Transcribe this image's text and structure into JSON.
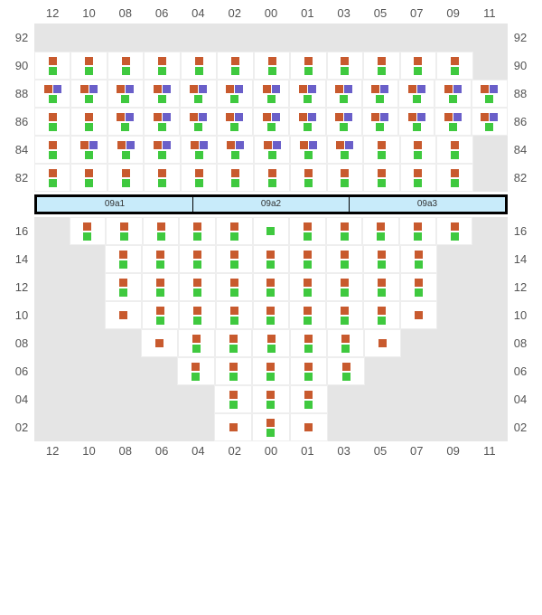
{
  "colors": {
    "orange": "#c85a2e",
    "green": "#3fc93f",
    "purple": "#6a5fc9",
    "cell_off": "#e5e5e5",
    "cell_on": "#ffffff",
    "grid_border": "#eeeeee",
    "mid_bg": "#c8ebfa",
    "mid_border": "#000000",
    "text": "#555555"
  },
  "marker_size": 9,
  "columns": [
    "12",
    "10",
    "08",
    "06",
    "04",
    "02",
    "00",
    "01",
    "03",
    "05",
    "07",
    "09",
    "11"
  ],
  "top": {
    "y_labels": [
      "92",
      "90",
      "88",
      "86",
      "84",
      "82"
    ],
    "rows": [
      {
        "y": "92",
        "cells": [
          null,
          null,
          null,
          null,
          null,
          null,
          null,
          null,
          null,
          null,
          null,
          null,
          null
        ]
      },
      {
        "y": "90",
        "cells": [
          [
            "o",
            "g"
          ],
          [
            "o",
            "g"
          ],
          [
            "o",
            "g"
          ],
          [
            "o",
            "g"
          ],
          [
            "o",
            "g"
          ],
          [
            "o",
            "g"
          ],
          [
            "o",
            "g"
          ],
          [
            "o",
            "g"
          ],
          [
            "o",
            "g"
          ],
          [
            "o",
            "g"
          ],
          [
            "o",
            "g"
          ],
          [
            "o",
            "g"
          ],
          null
        ]
      },
      {
        "y": "88",
        "cells": [
          [
            "o",
            "p",
            "g"
          ],
          [
            "o",
            "p",
            "g"
          ],
          [
            "o",
            "p",
            "g"
          ],
          [
            "o",
            "p",
            "g"
          ],
          [
            "o",
            "p",
            "g"
          ],
          [
            "o",
            "p",
            "g"
          ],
          [
            "o",
            "p",
            "g"
          ],
          [
            "o",
            "p",
            "g"
          ],
          [
            "o",
            "p",
            "g"
          ],
          [
            "o",
            "p",
            "g"
          ],
          [
            "o",
            "p",
            "g"
          ],
          [
            "o",
            "p",
            "g"
          ],
          [
            "o",
            "p",
            "g"
          ]
        ]
      },
      {
        "y": "86",
        "cells": [
          [
            "o",
            "g"
          ],
          [
            "o",
            "g"
          ],
          [
            "o",
            "p",
            "g"
          ],
          [
            "o",
            "p",
            "g"
          ],
          [
            "o",
            "p",
            "g"
          ],
          [
            "o",
            "p",
            "g"
          ],
          [
            "o",
            "p",
            "g"
          ],
          [
            "o",
            "p",
            "g"
          ],
          [
            "o",
            "p",
            "g"
          ],
          [
            "o",
            "p",
            "g"
          ],
          [
            "o",
            "p",
            "g"
          ],
          [
            "o",
            "p",
            "g"
          ],
          [
            "o",
            "p",
            "g"
          ]
        ]
      },
      {
        "y": "84",
        "cells": [
          [
            "o",
            "g"
          ],
          [
            "o",
            "p",
            "g"
          ],
          [
            "o",
            "p",
            "g"
          ],
          [
            "o",
            "p",
            "g"
          ],
          [
            "o",
            "p",
            "g"
          ],
          [
            "o",
            "p",
            "g"
          ],
          [
            "o",
            "p",
            "g"
          ],
          [
            "o",
            "p",
            "g"
          ],
          [
            "o",
            "p",
            "g"
          ],
          [
            "o",
            "g"
          ],
          [
            "o",
            "g"
          ],
          [
            "o",
            "g"
          ],
          null
        ]
      },
      {
        "y": "82",
        "cells": [
          [
            "o",
            "g"
          ],
          [
            "o",
            "g"
          ],
          [
            "o",
            "g"
          ],
          [
            "o",
            "g"
          ],
          [
            "o",
            "g"
          ],
          [
            "o",
            "g"
          ],
          [
            "o",
            "g"
          ],
          [
            "o",
            "g"
          ],
          [
            "o",
            "g"
          ],
          [
            "o",
            "g"
          ],
          [
            "o",
            "g"
          ],
          [
            "o",
            "g"
          ],
          null
        ]
      }
    ]
  },
  "mid_labels": [
    "09a1",
    "09a2",
    "09a3"
  ],
  "bottom": {
    "y_labels": [
      "16",
      "14",
      "12",
      "10",
      "08",
      "06",
      "04",
      "02"
    ],
    "rows": [
      {
        "y": "16",
        "cells": [
          null,
          [
            "o",
            "g"
          ],
          [
            "o",
            "g"
          ],
          [
            "o",
            "g"
          ],
          [
            "o",
            "g"
          ],
          [
            "o",
            "g"
          ],
          [
            "g"
          ],
          [
            "o",
            "g"
          ],
          [
            "o",
            "g"
          ],
          [
            "o",
            "g"
          ],
          [
            "o",
            "g"
          ],
          [
            "o",
            "g"
          ],
          null
        ]
      },
      {
        "y": "14",
        "cells": [
          null,
          null,
          [
            "o",
            "g"
          ],
          [
            "o",
            "g"
          ],
          [
            "o",
            "g"
          ],
          [
            "o",
            "g"
          ],
          [
            "o",
            "g"
          ],
          [
            "o",
            "g"
          ],
          [
            "o",
            "g"
          ],
          [
            "o",
            "g"
          ],
          [
            "o",
            "g"
          ],
          null,
          null
        ]
      },
      {
        "y": "12",
        "cells": [
          null,
          null,
          [
            "o",
            "g"
          ],
          [
            "o",
            "g"
          ],
          [
            "o",
            "g"
          ],
          [
            "o",
            "g"
          ],
          [
            "o",
            "g"
          ],
          [
            "o",
            "g"
          ],
          [
            "o",
            "g"
          ],
          [
            "o",
            "g"
          ],
          [
            "o",
            "g"
          ],
          null,
          null
        ]
      },
      {
        "y": "10",
        "cells": [
          null,
          null,
          [
            "o"
          ],
          [
            "o",
            "g"
          ],
          [
            "o",
            "g"
          ],
          [
            "o",
            "g"
          ],
          [
            "o",
            "g"
          ],
          [
            "o",
            "g"
          ],
          [
            "o",
            "g"
          ],
          [
            "o",
            "g"
          ],
          [
            "o"
          ],
          null,
          null
        ]
      },
      {
        "y": "08",
        "cells": [
          null,
          null,
          null,
          [
            "o"
          ],
          [
            "o",
            "g"
          ],
          [
            "o",
            "g"
          ],
          [
            "o",
            "g"
          ],
          [
            "o",
            "g"
          ],
          [
            "o",
            "g"
          ],
          [
            "o"
          ],
          null,
          null,
          null
        ]
      },
      {
        "y": "06",
        "cells": [
          null,
          null,
          null,
          null,
          [
            "o",
            "g"
          ],
          [
            "o",
            "g"
          ],
          [
            "o",
            "g"
          ],
          [
            "o",
            "g"
          ],
          [
            "o",
            "g"
          ],
          null,
          null,
          null,
          null
        ]
      },
      {
        "y": "04",
        "cells": [
          null,
          null,
          null,
          null,
          null,
          [
            "o",
            "g"
          ],
          [
            "o",
            "g"
          ],
          [
            "o",
            "g"
          ],
          null,
          null,
          null,
          null,
          null
        ]
      },
      {
        "y": "02",
        "cells": [
          null,
          null,
          null,
          null,
          null,
          [
            "o"
          ],
          [
            "o",
            "g"
          ],
          [
            "o"
          ],
          null,
          null,
          null,
          null,
          null
        ]
      }
    ]
  }
}
